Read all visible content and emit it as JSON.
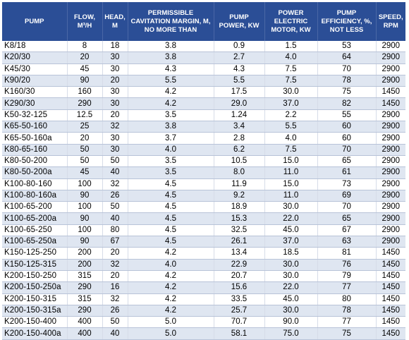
{
  "table": {
    "headers": [
      "PUMP",
      "FLOW, M³/H",
      "HEAD, M",
      "PERMISSIBLE CAVITATION MARGIN, M, NO MORE THAN",
      "PUMP POWER, KW",
      "POWER ELECTRIC MOTOR, KW",
      "PUMP EFFICIENCY, %, NOT LESS",
      "SPEED, RPM"
    ],
    "rows": [
      [
        "K8/18",
        "8",
        "18",
        "3.8",
        "0.9",
        "1.5",
        "53",
        "2900"
      ],
      [
        "K20/30",
        "20",
        "30",
        "3.8",
        "2.7",
        "4.0",
        "64",
        "2900"
      ],
      [
        "K45/30",
        "45",
        "30",
        "4.3",
        "4.3",
        "7.5",
        "70",
        "2900"
      ],
      [
        "K90/20",
        "90",
        "20",
        "5.5",
        "5.5",
        "7.5",
        "78",
        "2900"
      ],
      [
        "K160/30",
        "160",
        "30",
        "4.2",
        "17.5",
        "30.0",
        "75",
        "1450"
      ],
      [
        "K290/30",
        "290",
        "30",
        "4.2",
        "29.0",
        "37.0",
        "82",
        "1450"
      ],
      [
        "K50-32-125",
        "12.5",
        "20",
        "3.5",
        "1.24",
        "2.2",
        "55",
        "2900"
      ],
      [
        "K65-50-160",
        "25",
        "32",
        "3.8",
        "3.4",
        "5.5",
        "60",
        "2900"
      ],
      [
        "K65-50-160a",
        "20",
        "30",
        "3.7",
        "2.8",
        "4.0",
        "60",
        "2900"
      ],
      [
        "K80-65-160",
        "50",
        "30",
        "4.0",
        "6.2",
        "7.5",
        "70",
        "2900"
      ],
      [
        "K80-50-200",
        "50",
        "50",
        "3.5",
        "10.5",
        "15.0",
        "65",
        "2900"
      ],
      [
        "K80-50-200a",
        "45",
        "40",
        "3.5",
        "8.0",
        "11.0",
        "61",
        "2900"
      ],
      [
        "K100-80-160",
        "100",
        "32",
        "4.5",
        "11.9",
        "15.0",
        "73",
        "2900"
      ],
      [
        "K100-80-160a",
        "90",
        "26",
        "4.5",
        "9.2",
        "11.0",
        "69",
        "2900"
      ],
      [
        "K100-65-200",
        "100",
        "50",
        "4.5",
        "18.9",
        "30.0",
        "70",
        "2900"
      ],
      [
        "K100-65-200a",
        "90",
        "40",
        "4.5",
        "15.3",
        "22.0",
        "65",
        "2900"
      ],
      [
        "K100-65-250",
        "100",
        "80",
        "4.5",
        "32.5",
        "45.0",
        "67",
        "2900"
      ],
      [
        "K100-65-250a",
        "90",
        "67",
        "4.5",
        "26.1",
        "37.0",
        "63",
        "2900"
      ],
      [
        "K150-125-250",
        "200",
        "20",
        "4.2",
        "13.4",
        "18.5",
        "81",
        "1450"
      ],
      [
        "K150-125-315",
        "200",
        "32",
        "4.0",
        "22.9",
        "30.0",
        "76",
        "1450"
      ],
      [
        "K200-150-250",
        "315",
        "20",
        "4.2",
        "20.7",
        "30.0",
        "79",
        "1450"
      ],
      [
        "K200-150-250a",
        "290",
        "16",
        "4.2",
        "15.6",
        "22.0",
        "77",
        "1450"
      ],
      [
        "K200-150-315",
        "315",
        "32",
        "4.2",
        "33.5",
        "45.0",
        "80",
        "1450"
      ],
      [
        "K200-150-315a",
        "290",
        "26",
        "4.2",
        "25.7",
        "30.0",
        "78",
        "1450"
      ],
      [
        "K200-150-400",
        "400",
        "50",
        "5.0",
        "70.7",
        "90.0",
        "77",
        "1450"
      ],
      [
        "K200-150-400a",
        "400",
        "40",
        "5.0",
        "58.1",
        "75.0",
        "75",
        "1450"
      ]
    ]
  },
  "colors": {
    "header_background": "#2b4e96",
    "header_text": "#ffffff",
    "stripe": "#dfe6f1"
  }
}
